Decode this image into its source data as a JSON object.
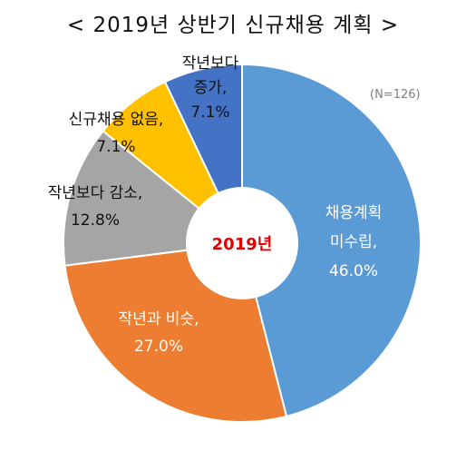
{
  "chart_data": {
    "type": "pie",
    "title": "< 2019년 상반기 신규채용 계획 >",
    "note": "(N=126)",
    "center_label": "2019년",
    "donut": true,
    "legend": "none",
    "slices": [
      {
        "lines": [
          "채용계획",
          "미수립,",
          "46.0%"
        ],
        "value": 46.0,
        "color": "#5b9bd5",
        "text_color": "#ffffff"
      },
      {
        "lines": [
          "작년과 비슷,",
          "27.0%"
        ],
        "value": 27.0,
        "color": "#ed7d31",
        "text_color": "#ffffff"
      },
      {
        "lines": [
          "작년보다 감소,",
          "12.8%"
        ],
        "value": 12.8,
        "color": "#a5a5a5",
        "text_color": "#111111"
      },
      {
        "lines": [
          "신규채용 없음,",
          "7.1%"
        ],
        "value": 7.1,
        "color": "#ffc000",
        "text_color": "#111111"
      },
      {
        "lines": [
          "작년보다",
          "증가,",
          "7.1%"
        ],
        "value": 7.1,
        "color": "#4472c4",
        "text_color": "#111111"
      }
    ],
    "colors": {
      "center_text": "#e00000",
      "slice_border": "#ffffff"
    }
  }
}
